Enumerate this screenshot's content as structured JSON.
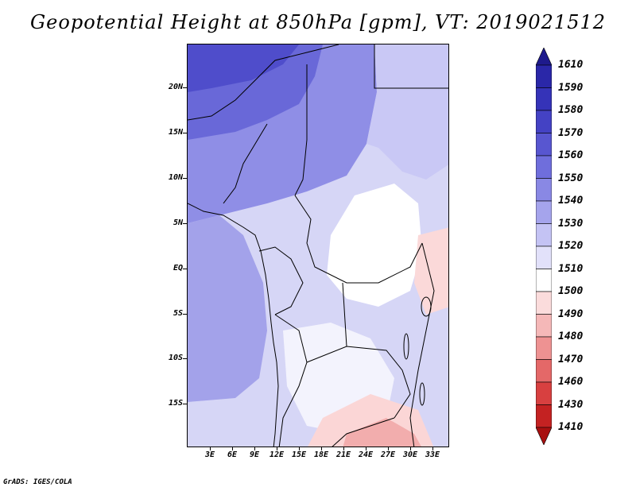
{
  "title": "Geopotential Height at 850hPa [gpm], VT: 2019021512",
  "credit": "GrADS: IGES/COLA",
  "map": {
    "lat_labels": [
      "20N",
      "15N",
      "10N",
      "5N",
      "EQ",
      "5S",
      "10S",
      "15S"
    ],
    "lon_labels": [
      "3E",
      "6E",
      "9E",
      "12E",
      "15E",
      "18E",
      "21E",
      "24E",
      "27E",
      "30E",
      "33E"
    ]
  },
  "colorbar": {
    "labels": [
      "1610",
      "1590",
      "1580",
      "1570",
      "1560",
      "1550",
      "1540",
      "1530",
      "1520",
      "1510",
      "1500",
      "1490",
      "1480",
      "1470",
      "1460",
      "1430",
      "1410"
    ],
    "colors": [
      "#1e1a8c",
      "#2a27a8",
      "#3533b8",
      "#4442c4",
      "#5856d0",
      "#6f6edc",
      "#8988e4",
      "#a5a4ec",
      "#c4c3f4",
      "#e2e1fa",
      "#ffffff",
      "#fbdcdc",
      "#f5b8b8",
      "#ee9292",
      "#e46868",
      "#d84040",
      "#c42222",
      "#a81010"
    ]
  },
  "legend_title": ""
}
